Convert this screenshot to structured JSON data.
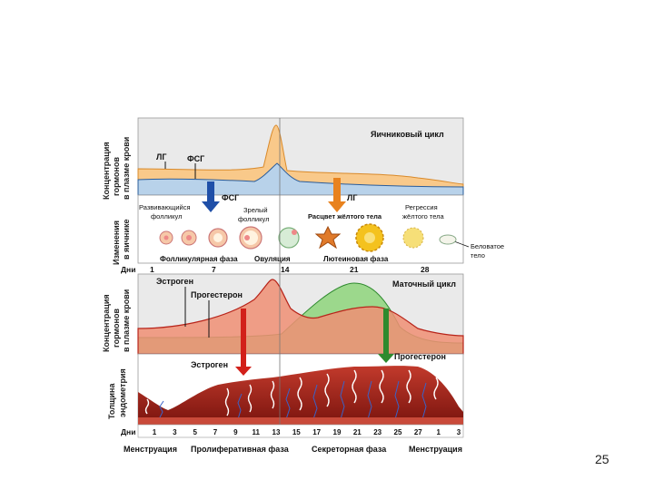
{
  "slide_number": "25",
  "panel1": {
    "side_label": [
      "Концентрация",
      "гормонов",
      "в плазме крови"
    ],
    "title": "Яичниковый цикл",
    "lh": "ЛГ",
    "fsh": "ФСГ"
  },
  "panel2": {
    "side_label": [
      "Изменения",
      "в яичнике"
    ],
    "arrow_fsh": "ФСГ",
    "arrow_lh": "ЛГ",
    "developing": [
      "Развивающийся",
      "фолликул"
    ],
    "mature": [
      "Зрелый",
      "фолликул"
    ],
    "bloom": "Расцвет жёлтого тела",
    "regression": [
      "Регрессия",
      "жёлтого тела"
    ],
    "white_body": [
      "Беловатое",
      "тело"
    ],
    "phase_follicular": "Фолликулярная фаза",
    "phase_ovulation": "Овуляция",
    "phase_luteal": "Лютеиновая фаза"
  },
  "days_top": {
    "label": "Дни",
    "values": [
      "1",
      "7",
      "14",
      "21",
      "28"
    ]
  },
  "panel3": {
    "side_label": [
      "Концентрация",
      "гормонов",
      "в плазме крови"
    ],
    "estrogen": "Эстроген",
    "progesterone": "Прогестерон",
    "title": "Маточный цикл"
  },
  "panel4": {
    "side_label": [
      "Толщина",
      "эндометрия"
    ],
    "estrogen": "Эстроген",
    "progesterone": "Прогестерон"
  },
  "days_bottom": {
    "label": "Дни",
    "values": [
      "1",
      "3",
      "5",
      "7",
      "9",
      "11",
      "13",
      "15",
      "17",
      "19",
      "21",
      "23",
      "25",
      "27",
      "1",
      "3"
    ]
  },
  "phases_bottom": [
    "Менструация",
    "Пролиферативная фаза",
    "Секреторная фаза",
    "Менструация"
  ],
  "colors": {
    "lh_fill": "#f9c98a",
    "lh_line": "#d98a2b",
    "fsh_fill": "#b8d2ea",
    "fsh_line": "#2a5c9a",
    "estrogen_fill": "#f08f74",
    "estrogen_line": "#b8241a",
    "progesterone_fill": "#9cd88c",
    "progesterone_line": "#2f8a2f",
    "panel_bg": "#eaeaea",
    "endometrium": "#a52018",
    "arrow_blue": "#1f4fa8",
    "arrow_orange": "#e8821e",
    "arrow_red": "#d2201a",
    "arrow_green": "#2e8a2e"
  }
}
